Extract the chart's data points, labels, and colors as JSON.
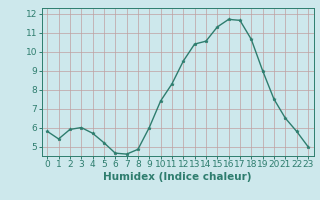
{
  "x": [
    0,
    1,
    2,
    3,
    4,
    5,
    6,
    7,
    8,
    9,
    10,
    11,
    12,
    13,
    14,
    15,
    16,
    17,
    18,
    19,
    20,
    21,
    22,
    23
  ],
  "y": [
    5.8,
    5.4,
    5.9,
    6.0,
    5.7,
    5.2,
    4.65,
    4.6,
    4.85,
    6.0,
    7.4,
    8.3,
    9.5,
    10.4,
    10.55,
    11.3,
    11.7,
    11.65,
    10.65,
    9.0,
    7.5,
    6.5,
    5.8,
    5.0
  ],
  "line_color": "#2e7d6e",
  "marker": "*",
  "marker_size": 2.5,
  "bg_color": "#cde8ec",
  "grid_color": "#c0a0a0",
  "xlabel": "Humidex (Indice chaleur)",
  "xlim": [
    -0.5,
    23.5
  ],
  "ylim": [
    4.5,
    12.3
  ],
  "yticks": [
    5,
    6,
    7,
    8,
    9,
    10,
    11,
    12
  ],
  "xticks": [
    0,
    1,
    2,
    3,
    4,
    5,
    6,
    7,
    8,
    9,
    10,
    11,
    12,
    13,
    14,
    15,
    16,
    17,
    18,
    19,
    20,
    21,
    22,
    23
  ],
  "tick_fontsize": 6.5,
  "xlabel_fontsize": 7.5,
  "linewidth": 1.0
}
